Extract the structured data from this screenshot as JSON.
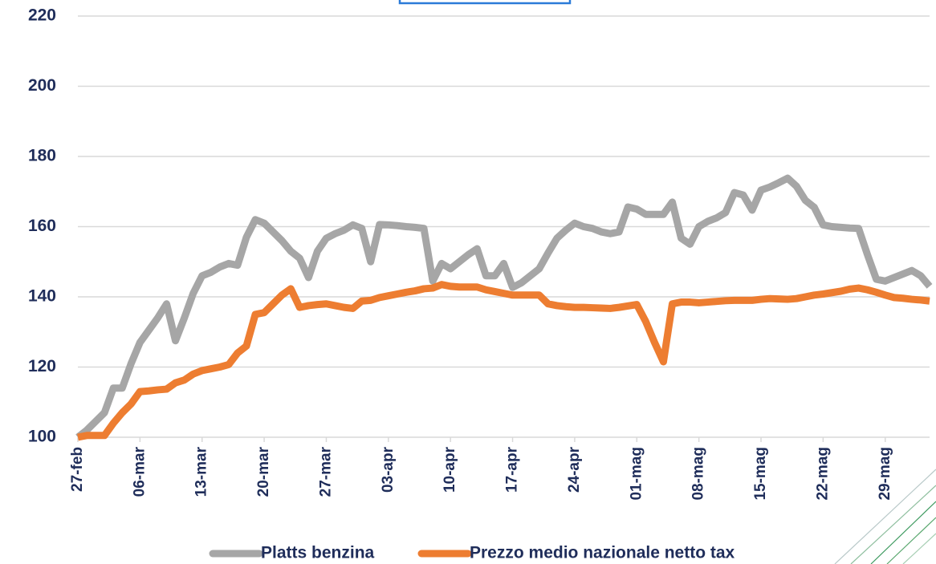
{
  "chart_data": {
    "type": "line",
    "categories": [
      "27-feb",
      null,
      null,
      null,
      null,
      null,
      null,
      "06-mar",
      null,
      null,
      null,
      null,
      null,
      null,
      "13-mar",
      null,
      null,
      null,
      null,
      null,
      null,
      "20-mar",
      null,
      null,
      null,
      null,
      null,
      null,
      "27-mar",
      null,
      null,
      null,
      null,
      null,
      null,
      "03-apr",
      null,
      null,
      null,
      null,
      null,
      null,
      "10-apr",
      null,
      null,
      null,
      null,
      null,
      null,
      "17-apr",
      null,
      null,
      null,
      null,
      null,
      null,
      "24-apr",
      null,
      null,
      null,
      null,
      null,
      null,
      "01-mag",
      null,
      null,
      null,
      null,
      null,
      null,
      "08-mag",
      null,
      null,
      null,
      null,
      null,
      null,
      "15-mag",
      null,
      null,
      null,
      null,
      null,
      null,
      "22-mag",
      null,
      null,
      null,
      null,
      null,
      null,
      "29-mag",
      null,
      null,
      null,
      null,
      null
    ],
    "series": [
      {
        "name": "Platts benzina",
        "color": "#a6a6a6",
        "values": [
          100,
          102,
          104.5,
          107,
          114,
          114,
          121,
          127,
          130.5,
          134,
          138,
          127.5,
          134,
          141,
          146,
          147,
          148.5,
          149.5,
          149,
          157,
          162,
          161,
          158.5,
          156,
          153,
          151,
          145.5,
          153,
          156.7,
          158,
          159,
          160.5,
          159.5,
          150,
          160.6,
          160.5,
          160.3,
          160,
          159.8,
          159.5,
          144.5,
          149.5,
          148,
          150,
          152,
          153.7,
          146,
          146,
          149.5,
          142.7,
          144,
          146,
          148,
          152.5,
          156.7,
          159,
          161,
          160,
          159.5,
          158.5,
          158,
          158.5,
          165.6,
          165,
          163.5,
          163.5,
          163.5,
          167,
          156.7,
          155,
          160,
          161.5,
          162.5,
          164,
          169.7,
          169,
          164.7,
          170.4,
          171.3,
          172.5,
          173.8,
          171.5,
          167.5,
          165.5,
          160.5,
          160,
          159.8,
          159.6,
          159.5,
          152,
          145,
          144.5,
          145.5,
          146.5,
          147.5,
          146,
          143
        ]
      },
      {
        "name": "Prezzo medio nazionale netto tax",
        "color": "#ed7d31",
        "values": [
          100,
          100.5,
          100.5,
          100.5,
          104,
          107,
          109.5,
          113,
          113.2,
          113.5,
          113.7,
          115.5,
          116.3,
          118,
          119,
          119.5,
          120,
          120.7,
          124,
          126,
          135,
          135.5,
          138,
          140.5,
          142.3,
          137,
          137.5,
          137.8,
          138,
          137.5,
          137,
          136.7,
          138.8,
          139,
          139.8,
          140.3,
          140.8,
          141.3,
          141.7,
          142.3,
          142.5,
          143.5,
          143,
          142.8,
          142.8,
          142.8,
          142,
          141.5,
          141,
          140.5,
          140.5,
          140.5,
          140.5,
          138,
          137.5,
          137.2,
          137,
          137,
          136.9,
          136.8,
          136.7,
          137,
          137.4,
          137.8,
          133,
          127,
          121.5,
          138,
          138.5,
          138.5,
          138.3,
          138.5,
          138.7,
          138.9,
          139,
          139,
          139,
          139.3,
          139.5,
          139.4,
          139.3,
          139.5,
          140,
          140.5,
          140.8,
          141.2,
          141.6,
          142.2,
          142.5,
          142,
          141.3,
          140.5,
          139.8,
          139.6,
          139.3,
          139.1,
          138.8
        ]
      }
    ],
    "ylim": [
      100,
      220
    ],
    "yticks": [
      100,
      120,
      140,
      160,
      180,
      200,
      220
    ],
    "grid": true,
    "legend": "bottom"
  }
}
